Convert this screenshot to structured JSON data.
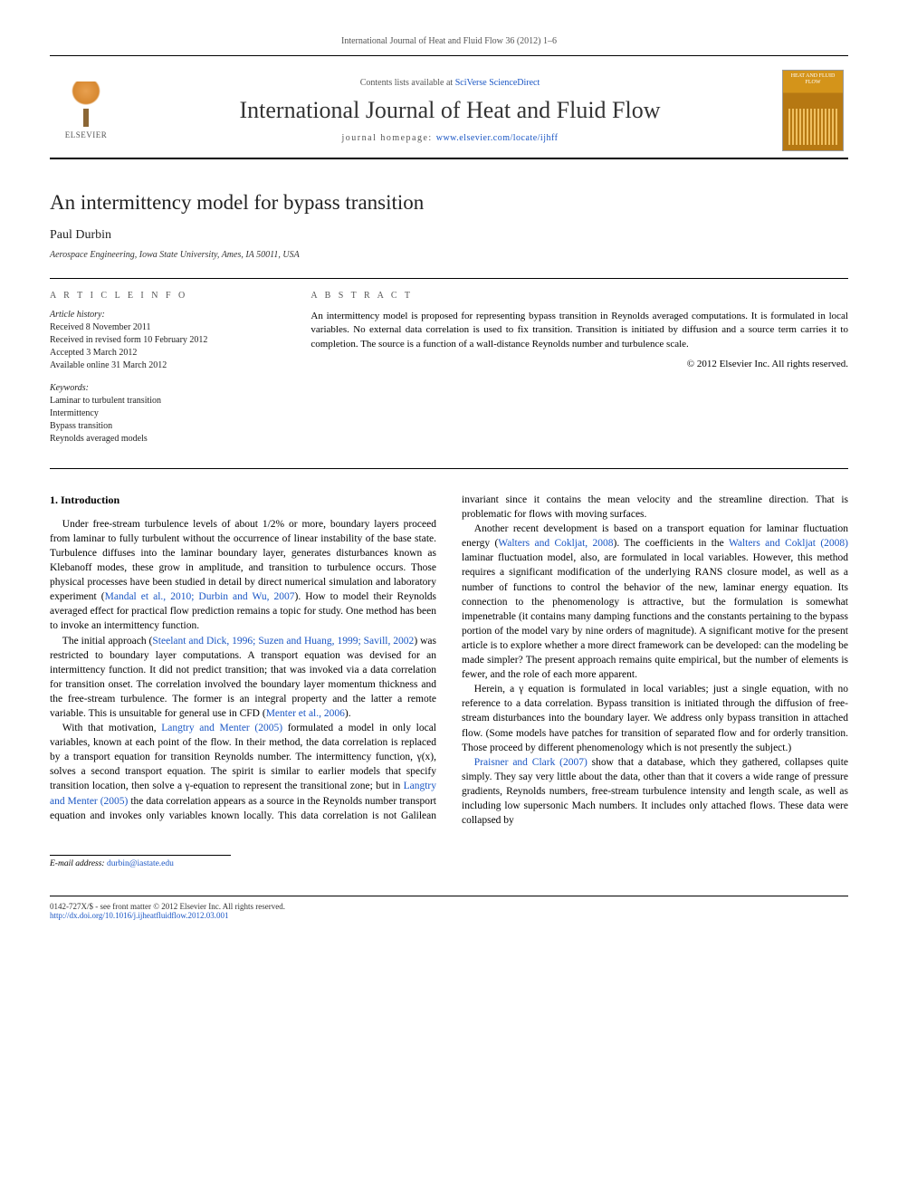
{
  "journal_ref": "International Journal of Heat and Fluid Flow 36 (2012) 1–6",
  "header": {
    "contents_prefix": "Contents lists available at ",
    "contents_link": "SciVerse ScienceDirect",
    "journal_title": "International Journal of Heat and Fluid Flow",
    "homepage_prefix": "journal homepage: ",
    "homepage_link": "www.elsevier.com/locate/ijhff",
    "publisher": "ELSEVIER",
    "cover_label": "HEAT AND FLUID FLOW"
  },
  "article": {
    "title": "An intermittency model for bypass transition",
    "author": "Paul Durbin",
    "affiliation": "Aerospace Engineering, Iowa State University, Ames, IA 50011, USA"
  },
  "info": {
    "heading": "A R T I C L E   I N F O",
    "history_label": "Article history:",
    "history": [
      "Received 8 November 2011",
      "Received in revised form 10 February 2012",
      "Accepted 3 March 2012",
      "Available online 31 March 2012"
    ],
    "keywords_label": "Keywords:",
    "keywords": [
      "Laminar to turbulent transition",
      "Intermittency",
      "Bypass transition",
      "Reynolds averaged models"
    ]
  },
  "abstract": {
    "heading": "A B S T R A C T",
    "text": "An intermittency model is proposed for representing bypass transition in Reynolds averaged computations. It is formulated in local variables. No external data correlation is used to fix transition. Transition is initiated by diffusion and a source term carries it to completion. The source is a function of a wall-distance Reynolds number and turbulence scale.",
    "copyright": "© 2012 Elsevier Inc. All rights reserved."
  },
  "section1": {
    "heading": "1. Introduction",
    "p1": "Under free-stream turbulence levels of about 1/2% or more, boundary layers proceed from laminar to fully turbulent without the occurrence of linear instability of the base state. Turbulence diffuses into the laminar boundary layer, generates disturbances known as Klebanoff modes, these grow in amplitude, and transition to turbulence occurs. Those physical processes have been studied in detail by direct numerical simulation and laboratory experiment (",
    "p1_cite1": "Mandal et al., 2010; Durbin and Wu, 2007",
    "p1b": "). How to model their Reynolds averaged effect for practical flow prediction remains a topic for study. One method has been to invoke an intermittency function.",
    "p2": "The initial approach (",
    "p2_cite1": "Steelant and Dick, 1996; Suzen and Huang, 1999; Savill, 2002",
    "p2b": ") was restricted to boundary layer computations. A transport equation was devised for an intermittency function. It did not predict transition; that was invoked via a data correlation for transition onset. The correlation involved the boundary layer momentum thickness and the free-stream turbulence. The former is an integral property and the latter a remote variable. This is unsuitable for general use in CFD (",
    "p2_cite2": "Menter et al., 2006",
    "p2c": ").",
    "p3": "With that motivation, ",
    "p3_cite1": "Langtry and Menter (2005)",
    "p3b": " formulated a model in only local variables, known at each point of the flow. In their method, the data correlation is replaced by a transport equation for transition Reynolds number. The intermittency function, γ(x), solves a second transport equation. The spirit is similar to earlier models that specify transition location, then solve a γ-equation to represent the transitional zone; but in ",
    "p3_cite2": "Langtry and Menter (2005)",
    "p3c": " the data correlation appears as a source in the Reynolds number transport equation and invokes only variables known locally. This data correlation is not Galilean invariant since it contains the mean velocity and the streamline direction. That is problematic for flows with moving surfaces.",
    "p4": "Another recent development is based on a transport equation for laminar fluctuation energy (",
    "p4_cite1": "Walters and Cokljat, 2008",
    "p4b": "). The coefficients in the ",
    "p4_cite2": "Walters and Cokljat (2008)",
    "p4c": " laminar fluctuation model, also, are formulated in local variables. However, this method requires a significant modification of the underlying RANS closure model, as well as a number of functions to control the behavior of the new, laminar energy equation. Its connection to the phenomenology is attractive, but the formulation is somewhat impenetrable (it contains many damping functions and the constants pertaining to the bypass portion of the model vary by nine orders of magnitude). A significant motive for the present article is to explore whether a more direct framework can be developed: can the modeling be made simpler? The present approach remains quite empirical, but the number of elements is fewer, and the role of each more apparent.",
    "p5": "Herein, a γ equation is formulated in local variables; just a single equation, with no reference to a data correlation. Bypass transition is initiated through the diffusion of free-stream disturbances into the boundary layer. We address only bypass transition in attached flow. (Some models have patches for transition of separated flow and for orderly transition. Those proceed by different phenomenology which is not presently the subject.)",
    "p6_cite1": "Praisner and Clark (2007)",
    "p6": " show that a database, which they gathered, collapses quite simply. They say very little about the data, other than that it covers a wide range of pressure gradients, Reynolds numbers, free-stream turbulence intensity and length scale, as well as including low supersonic Mach numbers. It includes only attached flows. These data were collapsed by"
  },
  "footer": {
    "email_label": "E-mail address: ",
    "email": "durbin@iastate.edu",
    "issn": "0142-727X/$ - see front matter © 2012 Elsevier Inc. All rights reserved.",
    "doi": "http://dx.doi.org/10.1016/j.ijheatfluidflow.2012.03.001"
  }
}
